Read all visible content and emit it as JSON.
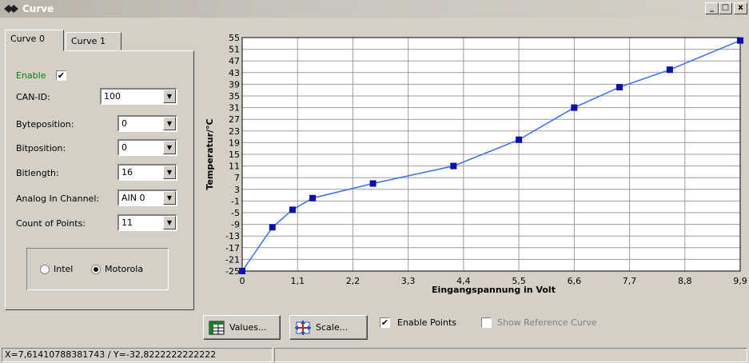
{
  "window": {
    "title": "Curve",
    "minimize_label": "_",
    "maximize_label": "□",
    "close_label": "x"
  },
  "tabs": [
    {
      "label": "Curve 0",
      "active": true
    },
    {
      "label": "Curve 1",
      "active": false
    }
  ],
  "settings": {
    "enable_label": "Enable",
    "enable_checked": "✔",
    "can_id": {
      "label": "CAN-ID:",
      "value": "100"
    },
    "byteposition": {
      "label": "Byteposition:",
      "value": "0"
    },
    "bitposition": {
      "label": "Bitposition:",
      "value": "0"
    },
    "bitlength": {
      "label": "Bitlength:",
      "value": "16"
    },
    "analog_in_channel": {
      "label": "Analog In Channel:",
      "value": "AIN 0"
    },
    "count_of_points": {
      "label": "Count of Points:",
      "value": "11"
    },
    "byte_order": {
      "intel_label": "Intel",
      "motorola_label": "Motorola",
      "selected": "Motorola"
    }
  },
  "chart_data": {
    "type": "line",
    "xlabel": "Eingangspannung in Volt",
    "ylabel": "Temperatur/°C",
    "xlim": [
      0,
      9.9
    ],
    "ylim": [
      -25,
      55
    ],
    "x_ticks": [
      "0",
      "1,1",
      "2,2",
      "3,3",
      "4,4",
      "5,5",
      "6,6",
      "7,7",
      "8,8",
      "9,9"
    ],
    "y_ticks": [
      "55",
      "51",
      "47",
      "43",
      "39",
      "35",
      "31",
      "27",
      "23",
      "19",
      "15",
      "11",
      "7",
      "3",
      "-1",
      "-5",
      "-9",
      "-13",
      "-17",
      "-21",
      "-25"
    ],
    "grid": true,
    "series": [
      {
        "color": "#3a6df0",
        "marker_color": "#0a10a8",
        "x": [
          0,
          0.6,
          1.0,
          1.4,
          2.6,
          4.2,
          5.5,
          6.6,
          7.5,
          8.5,
          9.9
        ],
        "y": [
          -25,
          -10,
          -4,
          0,
          5,
          11,
          20,
          31,
          38,
          44,
          54
        ]
      }
    ]
  },
  "buttons": {
    "values_label": "Values...",
    "scale_label": "Scale...",
    "enable_points_label": "Enable Points",
    "enable_points_checked": "✔",
    "show_reference_label": "Show Reference Curve"
  },
  "status": {
    "coords": "X=7,61410788381743 / Y=-32,8222222222222",
    "panel2": ""
  }
}
